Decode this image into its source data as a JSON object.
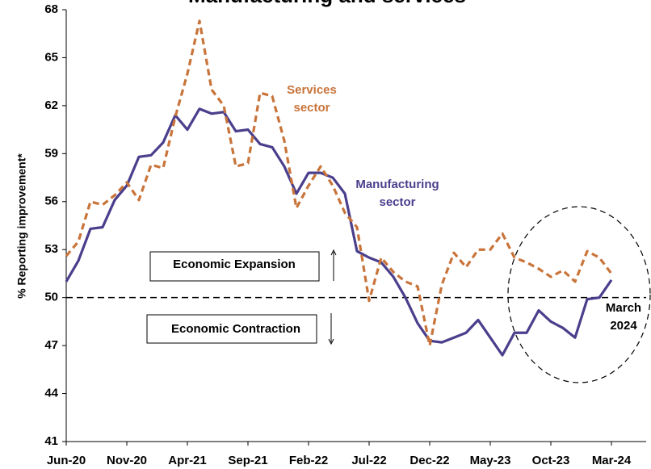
{
  "chart_data": {
    "type": "line",
    "title": "Manufacturing and services",
    "ylabel": "% Reporting improvement*",
    "categories": [
      "Jun-20",
      null,
      null,
      null,
      null,
      "Nov-20",
      null,
      null,
      null,
      null,
      "Apr-21",
      null,
      null,
      null,
      null,
      "Sep-21",
      null,
      null,
      null,
      null,
      "Feb-22",
      null,
      null,
      null,
      null,
      "Jul-22",
      null,
      null,
      null,
      null,
      "Dec-22",
      null,
      null,
      null,
      null,
      "May-23",
      null,
      null,
      null,
      null,
      "Oct-23",
      null,
      null,
      null,
      null,
      "Mar-24"
    ],
    "series": [
      {
        "name": "Manufacturing sector",
        "color": "#4a3f8c",
        "dashed": false,
        "values": [
          51.0,
          52.3,
          54.3,
          54.4,
          56.1,
          57.0,
          58.8,
          58.9,
          59.7,
          61.4,
          60.5,
          61.8,
          61.5,
          61.6,
          60.4,
          60.5,
          59.6,
          59.4,
          58.2,
          56.5,
          57.8,
          57.8,
          57.5,
          56.5,
          52.9,
          52.5,
          52.2,
          51.3,
          50.0,
          48.4,
          47.3,
          47.2,
          47.5,
          47.8,
          48.6,
          47.5,
          46.4,
          47.8,
          47.8,
          49.2,
          48.5,
          48.1,
          47.5,
          49.9,
          50.0,
          51.1
        ]
      },
      {
        "name": "Services sector",
        "color": "#c8743a",
        "dashed": true,
        "values": [
          52.6,
          53.5,
          56.0,
          55.8,
          56.4,
          57.2,
          56.1,
          58.3,
          58.1,
          61.3,
          64.0,
          67.3,
          63.0,
          62.0,
          58.2,
          58.4,
          62.8,
          62.6,
          59.8,
          55.6,
          57.0,
          58.2,
          57.0,
          55.3,
          54.4,
          49.8,
          52.5,
          51.6,
          51.0,
          50.7,
          47.0,
          50.8,
          52.8,
          51.9,
          53.0,
          53.0,
          54.0,
          52.5,
          52.2,
          51.8,
          51.3,
          51.7,
          51.0,
          52.9,
          52.5,
          51.5
        ]
      }
    ],
    "series_labels": [
      [
        "Manufacturing",
        "sector"
      ],
      [
        "Services",
        "sector"
      ]
    ],
    "threshold": 50,
    "annotations": {
      "expansion": "Economic Expansion",
      "contraction": "Economic Contraction",
      "latest": [
        "March",
        "2024"
      ]
    },
    "ylim": [
      41,
      68
    ],
    "yticks": [
      41,
      44,
      47,
      50,
      53,
      56,
      59,
      62,
      65,
      68
    ]
  }
}
